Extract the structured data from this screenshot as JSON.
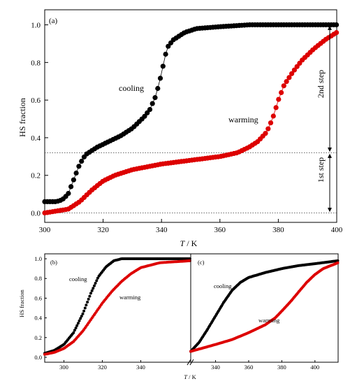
{
  "chart_data": [
    {
      "type": "scatter",
      "panel_label": "(a)",
      "xlabel_var": "T",
      "xlabel_unit": " / K",
      "ylabel": "HS fraction",
      "xlim": [
        300,
        400
      ],
      "ylim": [
        -0.05,
        1.08
      ],
      "xticks": [
        300,
        320,
        340,
        360,
        380,
        400
      ],
      "yticks": [
        0.0,
        0.2,
        0.4,
        0.6,
        0.8,
        1.0
      ],
      "ytick_labels": [
        "0.0",
        "0.2",
        "0.4",
        "0.6",
        "0.8",
        "1.0"
      ],
      "series": [
        {
          "name": "cooling",
          "color": "#000000",
          "curve": [
            [
              300,
              0.06
            ],
            [
              304,
              0.06
            ],
            [
              306,
              0.07
            ],
            [
              308,
              0.1
            ],
            [
              310,
              0.18
            ],
            [
              312,
              0.26
            ],
            [
              314,
              0.31
            ],
            [
              318,
              0.35
            ],
            [
              322,
              0.38
            ],
            [
              326,
              0.41
            ],
            [
              330,
              0.45
            ],
            [
              334,
              0.51
            ],
            [
              336,
              0.55
            ],
            [
              338,
              0.62
            ],
            [
              339,
              0.68
            ],
            [
              340,
              0.74
            ],
            [
              341,
              0.82
            ],
            [
              342,
              0.88
            ],
            [
              344,
              0.92
            ],
            [
              348,
              0.96
            ],
            [
              352,
              0.98
            ],
            [
              360,
              0.99
            ],
            [
              370,
              1.0
            ],
            [
              400,
              1.0
            ]
          ]
        },
        {
          "name": "warming",
          "color": "#dd0000",
          "curve": [
            [
              300,
              0.0
            ],
            [
              304,
              0.01
            ],
            [
              308,
              0.02
            ],
            [
              312,
              0.06
            ],
            [
              316,
              0.12
            ],
            [
              320,
              0.17
            ],
            [
              324,
              0.2
            ],
            [
              330,
              0.23
            ],
            [
              340,
              0.26
            ],
            [
              350,
              0.28
            ],
            [
              360,
              0.3
            ],
            [
              366,
              0.32
            ],
            [
              370,
              0.35
            ],
            [
              373,
              0.38
            ],
            [
              376,
              0.43
            ],
            [
              378,
              0.5
            ],
            [
              380,
              0.6
            ],
            [
              382,
              0.68
            ],
            [
              385,
              0.75
            ],
            [
              388,
              0.81
            ],
            [
              392,
              0.87
            ],
            [
              396,
              0.92
            ],
            [
              400,
              0.96
            ]
          ]
        }
      ],
      "reference_lines": [
        0.0,
        0.32
      ],
      "annotations": {
        "cooling": "cooling",
        "warming": "warming",
        "step2": "2nd step",
        "step1": "1st step"
      }
    },
    {
      "type": "scatter",
      "panel_label": "(b)",
      "ylabel": "HS fraction",
      "xlim": [
        290,
        366
      ],
      "ylim": [
        -0.05,
        1.05
      ],
      "xticks": [
        300,
        320,
        340
      ],
      "yticks": [
        0.0,
        0.2,
        0.4,
        0.6,
        0.8,
        1.0
      ],
      "ytick_labels": [
        "0.0",
        "0.2",
        "0.4",
        "0.6",
        "0.8",
        "1.0"
      ],
      "series": [
        {
          "name": "cooling",
          "color": "#000000",
          "curve": [
            [
              290,
              0.04
            ],
            [
              295,
              0.07
            ],
            [
              300,
              0.13
            ],
            [
              305,
              0.25
            ],
            [
              310,
              0.45
            ],
            [
              314,
              0.65
            ],
            [
              318,
              0.82
            ],
            [
              322,
              0.92
            ],
            [
              326,
              0.98
            ],
            [
              330,
              1.0
            ],
            [
              366,
              1.0
            ]
          ]
        },
        {
          "name": "warming",
          "color": "#dd0000",
          "curve": [
            [
              290,
              0.03
            ],
            [
              295,
              0.05
            ],
            [
              300,
              0.09
            ],
            [
              305,
              0.16
            ],
            [
              310,
              0.27
            ],
            [
              315,
              0.41
            ],
            [
              320,
              0.55
            ],
            [
              325,
              0.67
            ],
            [
              330,
              0.77
            ],
            [
              335,
              0.85
            ],
            [
              340,
              0.91
            ],
            [
              350,
              0.96
            ],
            [
              366,
              0.98
            ]
          ]
        }
      ],
      "annotations": {
        "cooling": "cooling",
        "warming": "warming"
      }
    },
    {
      "type": "scatter",
      "panel_label": "(c)",
      "xlim": [
        325,
        414
      ],
      "ylim": [
        -0.05,
        1.05
      ],
      "xticks": [
        340,
        360,
        380,
        400
      ],
      "series": [
        {
          "name": "cooling",
          "color": "#000000",
          "curve": [
            [
              325,
              0.06
            ],
            [
              330,
              0.15
            ],
            [
              335,
              0.28
            ],
            [
              340,
              0.42
            ],
            [
              345,
              0.56
            ],
            [
              350,
              0.68
            ],
            [
              355,
              0.76
            ],
            [
              360,
              0.81
            ],
            [
              370,
              0.86
            ],
            [
              380,
              0.9
            ],
            [
              390,
              0.93
            ],
            [
              400,
              0.95
            ],
            [
              414,
              0.98
            ]
          ]
        },
        {
          "name": "warming",
          "color": "#dd0000",
          "curve": [
            [
              325,
              0.06
            ],
            [
              340,
              0.13
            ],
            [
              350,
              0.18
            ],
            [
              360,
              0.25
            ],
            [
              370,
              0.33
            ],
            [
              376,
              0.4
            ],
            [
              380,
              0.47
            ],
            [
              385,
              0.56
            ],
            [
              390,
              0.66
            ],
            [
              395,
              0.76
            ],
            [
              400,
              0.84
            ],
            [
              405,
              0.9
            ],
            [
              414,
              0.96
            ]
          ]
        }
      ],
      "annotations": {
        "cooling": "cooling",
        "warming": "warming"
      }
    }
  ],
  "shared_xlabel": {
    "var": "T",
    "unit": " / K"
  }
}
